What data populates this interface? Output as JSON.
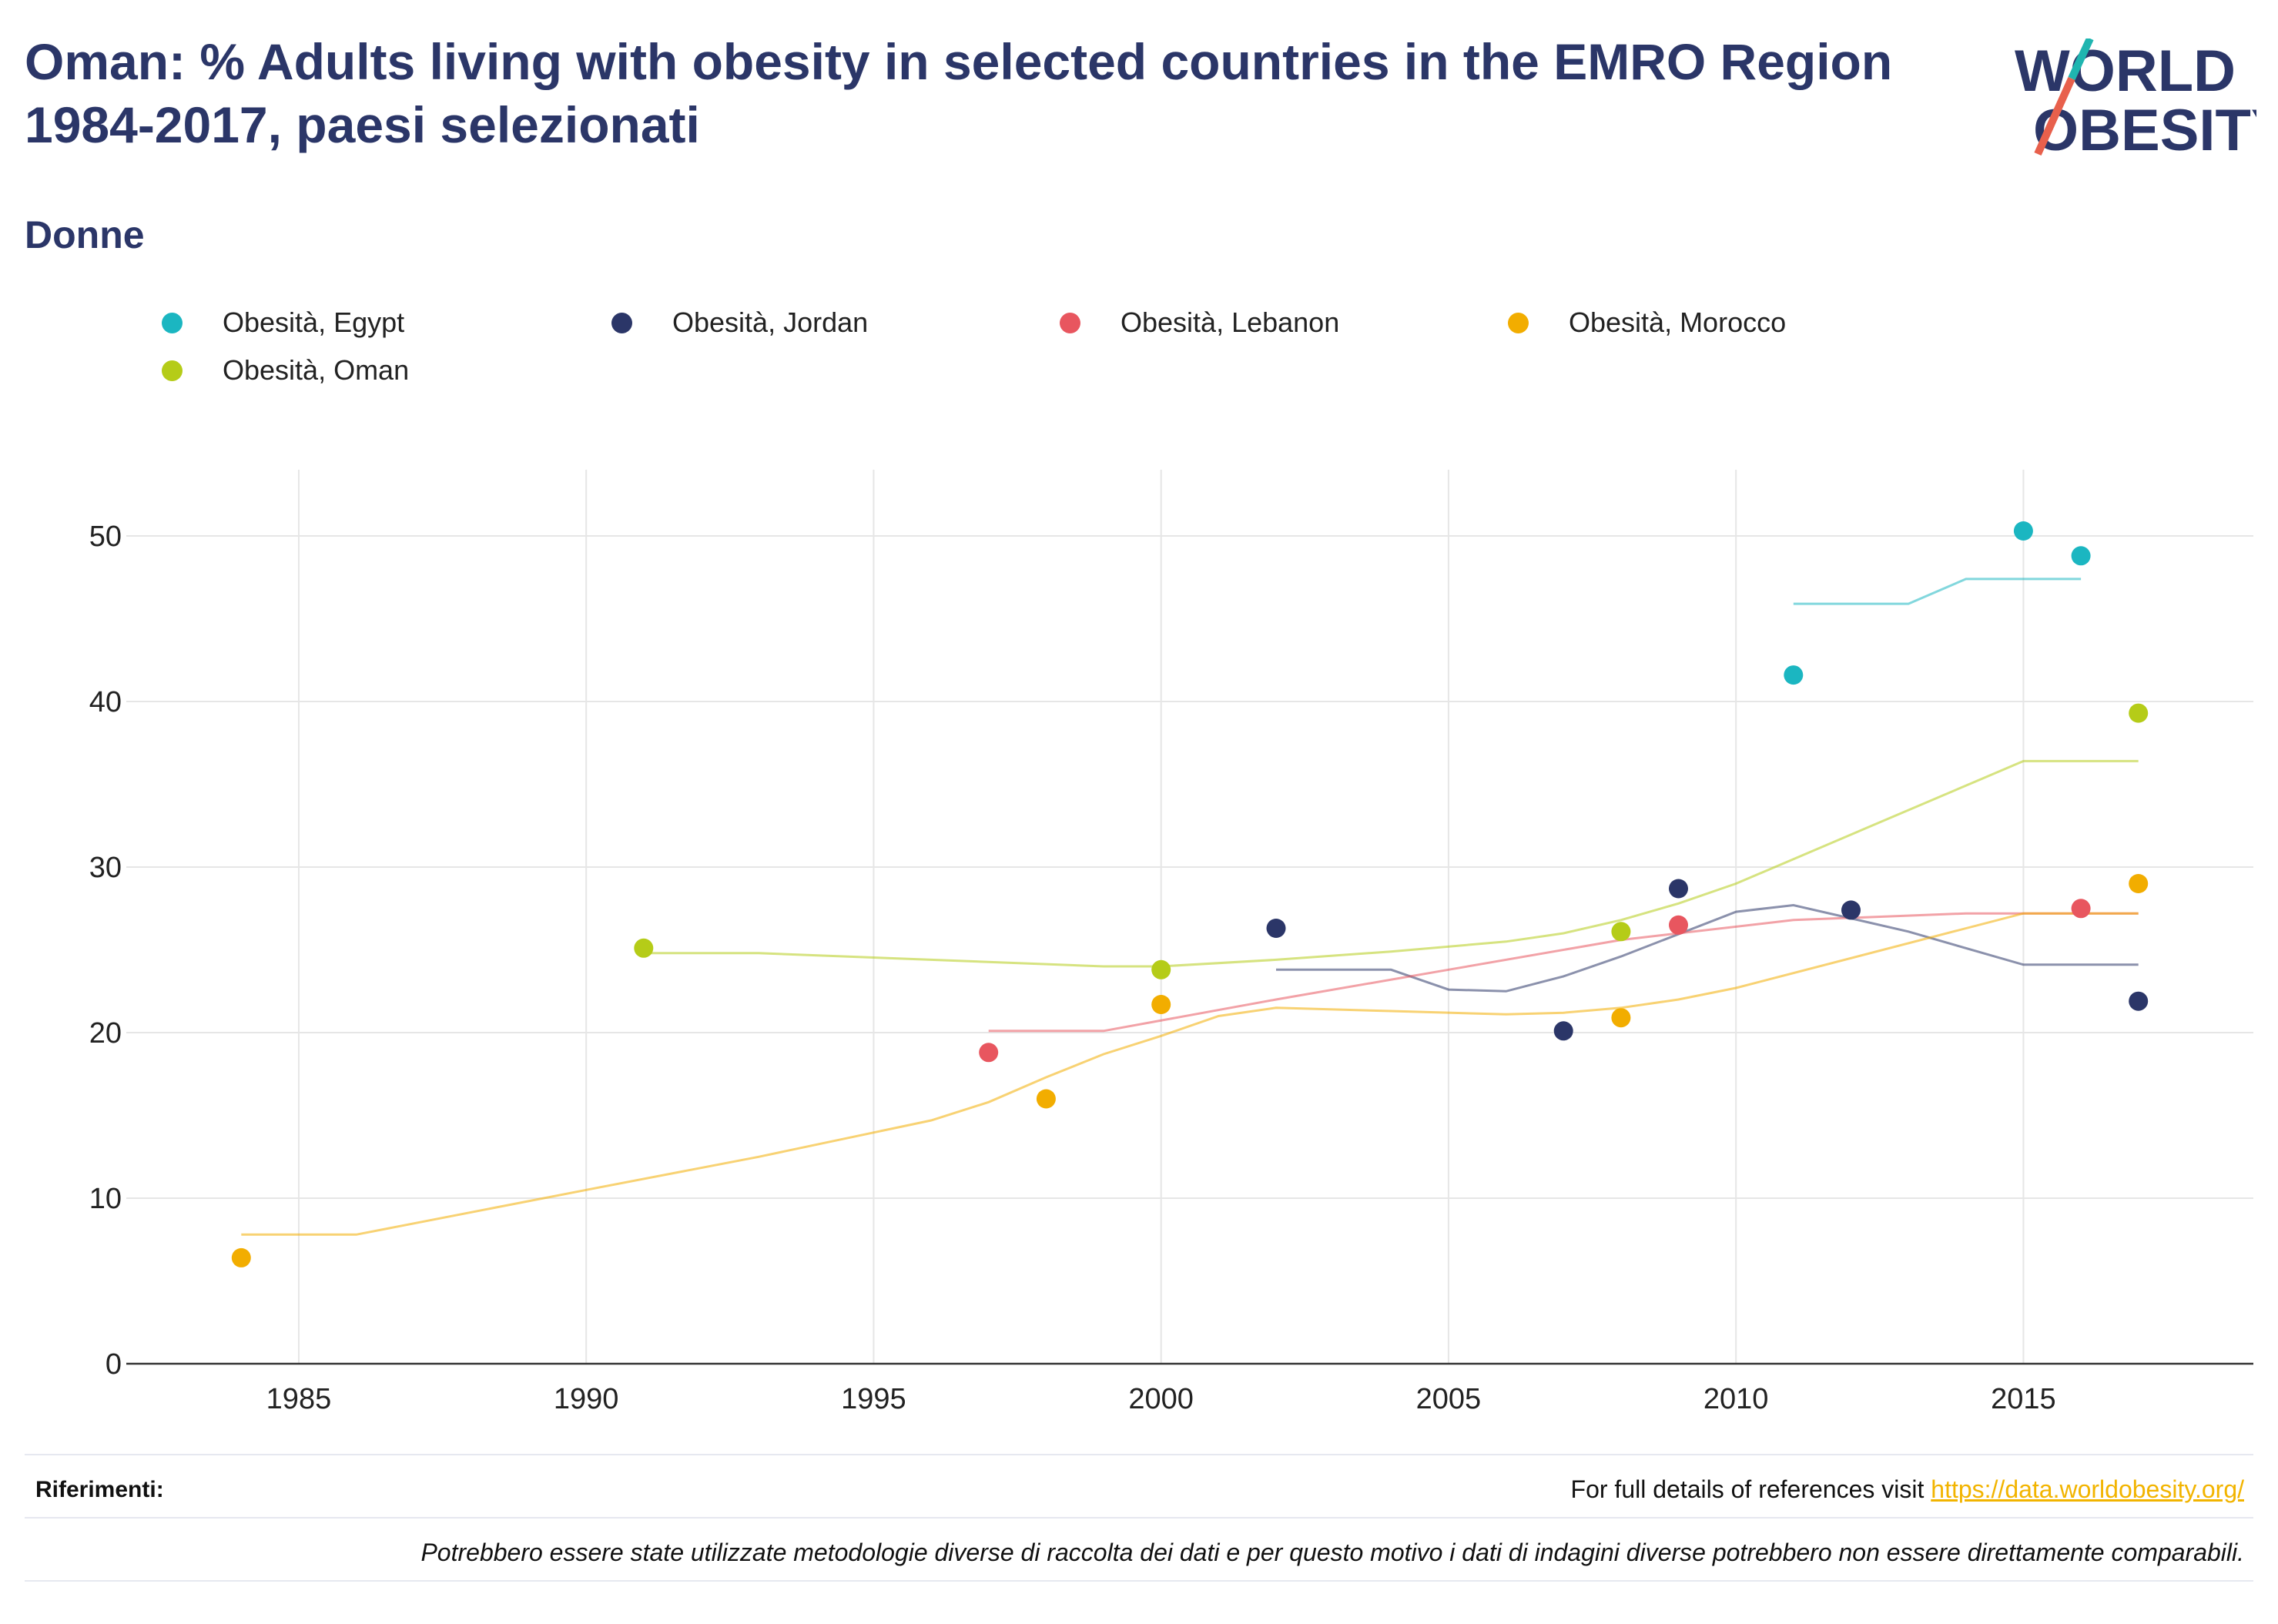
{
  "header": {
    "title": "Oman: % Adults living with obesity in selected countries in the EMRO Region 1984-2017, paesi selezionati",
    "subtitle": "Donne"
  },
  "logo": {
    "line1": "WORLD",
    "line2": "OBESITY",
    "accent_teal": "#1fb5b0",
    "accent_red": "#e8604c"
  },
  "footer": {
    "refs_label": "Riferimenti:",
    "refs_prefix": "For full details of references visit ",
    "refs_link": "https://data.worldobesity.org/",
    "note": "Potrebbero essere state utilizzate metodologie diverse di raccolta dei dati e per questo motivo i dati di indagini diverse potrebbero non essere direttamente comparabili."
  },
  "chart_data": {
    "type": "scatter",
    "title": "Oman: % Adults living with obesity in selected countries in the EMRO Region 1984-2017, paesi selezionati",
    "subtitle": "Donne",
    "xlabel": "",
    "ylabel": "",
    "xlim": [
      1982,
      2019
    ],
    "ylim": [
      0,
      54
    ],
    "x_ticks": [
      1985,
      1990,
      1995,
      2000,
      2005,
      2010,
      2015
    ],
    "y_ticks": [
      0,
      10,
      20,
      30,
      40,
      50
    ],
    "grid": true,
    "legend_position": "top",
    "series": [
      {
        "name": "Obesità, Egypt",
        "color": "#1bb6c1",
        "points": [
          [
            2011,
            41.6
          ],
          [
            2015,
            50.3
          ],
          [
            2016,
            48.8
          ]
        ],
        "trend": [
          [
            2011,
            45.9
          ],
          [
            2013,
            45.9
          ],
          [
            2014,
            47.4
          ],
          [
            2016,
            47.4
          ]
        ]
      },
      {
        "name": "Obesità, Jordan",
        "color": "#2b3668",
        "points": [
          [
            2002,
            26.3
          ],
          [
            2007,
            20.1
          ],
          [
            2009,
            28.7
          ],
          [
            2012,
            27.4
          ],
          [
            2017,
            21.9
          ]
        ],
        "trend": [
          [
            2002,
            23.8
          ],
          [
            2004,
            23.8
          ],
          [
            2005,
            22.6
          ],
          [
            2006,
            22.5
          ],
          [
            2007,
            23.4
          ],
          [
            2008,
            24.6
          ],
          [
            2010,
            27.3
          ],
          [
            2011,
            27.7
          ],
          [
            2013,
            26.1
          ],
          [
            2015,
            24.1
          ],
          [
            2017,
            24.1
          ]
        ]
      },
      {
        "name": "Obesità, Lebanon",
        "color": "#e8565f",
        "points": [
          [
            1997,
            18.8
          ],
          [
            2009,
            26.5
          ],
          [
            2016,
            27.5
          ]
        ],
        "trend": [
          [
            1997,
            20.1
          ],
          [
            1999,
            20.1
          ],
          [
            2002,
            22.0
          ],
          [
            2005,
            23.8
          ],
          [
            2008,
            25.6
          ],
          [
            2011,
            26.8
          ],
          [
            2014,
            27.2
          ],
          [
            2017,
            27.2
          ]
        ]
      },
      {
        "name": "Obesità, Morocco",
        "color": "#f2ad00",
        "points": [
          [
            1984,
            6.4
          ],
          [
            1998,
            16.0
          ],
          [
            2000,
            21.7
          ],
          [
            2008,
            20.9
          ],
          [
            2017,
            29.0
          ]
        ],
        "trend": [
          [
            1984,
            7.8
          ],
          [
            1986,
            7.8
          ],
          [
            1990,
            10.5
          ],
          [
            1993,
            12.5
          ],
          [
            1996,
            14.7
          ],
          [
            1997,
            15.8
          ],
          [
            1998,
            17.3
          ],
          [
            1999,
            18.7
          ],
          [
            2000,
            19.8
          ],
          [
            2001,
            21.0
          ],
          [
            2002,
            21.5
          ],
          [
            2004,
            21.3
          ],
          [
            2006,
            21.1
          ],
          [
            2007,
            21.2
          ],
          [
            2008,
            21.5
          ],
          [
            2009,
            22.0
          ],
          [
            2010,
            22.7
          ],
          [
            2015,
            27.2
          ],
          [
            2017,
            27.2
          ]
        ]
      },
      {
        "name": "Obesità, Oman",
        "color": "#b5cc18",
        "points": [
          [
            1991,
            25.1
          ],
          [
            2000,
            23.8
          ],
          [
            2008,
            26.1
          ],
          [
            2017,
            39.3
          ]
        ],
        "trend": [
          [
            1991,
            24.8
          ],
          [
            1993,
            24.8
          ],
          [
            1996,
            24.4
          ],
          [
            1999,
            24.0
          ],
          [
            2000,
            24.0
          ],
          [
            2002,
            24.4
          ],
          [
            2004,
            24.9
          ],
          [
            2006,
            25.5
          ],
          [
            2007,
            26.0
          ],
          [
            2008,
            26.8
          ],
          [
            2009,
            27.8
          ],
          [
            2010,
            29.0
          ],
          [
            2015,
            36.4
          ],
          [
            2017,
            36.4
          ]
        ]
      }
    ]
  }
}
